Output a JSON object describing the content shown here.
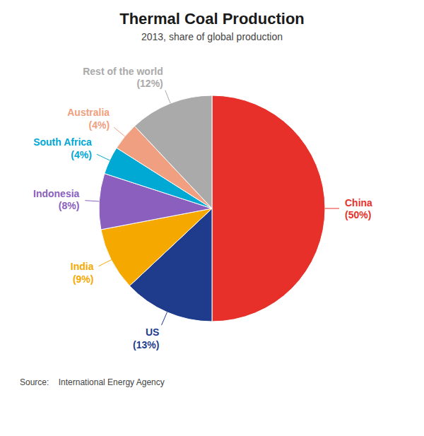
{
  "chart_data": {
    "type": "pie",
    "title": "Thermal Coal Production",
    "subtitle": "2013, share of global production",
    "source": "Source:    International Energy Agency",
    "categories": [
      "China",
      "US",
      "India",
      "Indonesia",
      "South Africa",
      "Australia",
      "Rest of the world"
    ],
    "values": [
      50,
      13,
      9,
      8,
      4,
      4,
      12
    ],
    "value_labels": [
      "(50%)",
      "(13%)",
      "(9%)",
      "(8%)",
      "(4%)",
      "(4%)",
      "(12%)"
    ],
    "colors": [
      "#e8302a",
      "#1f3b8c",
      "#f5a800",
      "#8b5fbe",
      "#00a8d4",
      "#f0a080",
      "#aaaaaa"
    ],
    "data_labels": true
  }
}
